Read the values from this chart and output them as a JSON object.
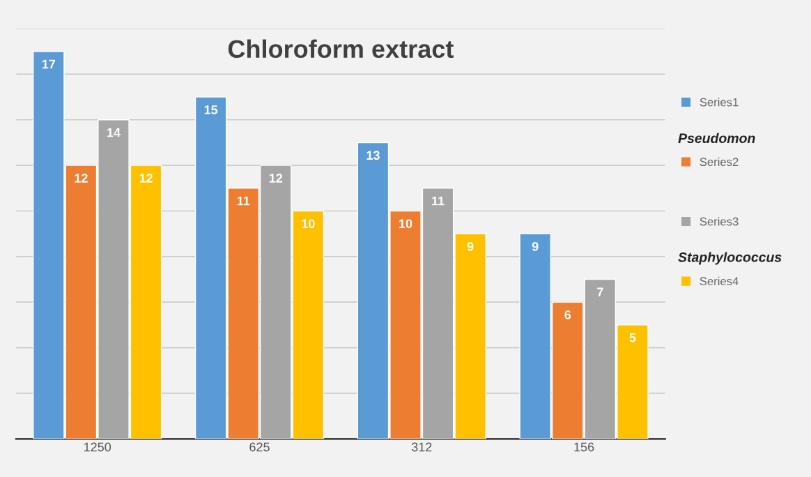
{
  "chart_data": {
    "type": "bar",
    "title": "Chloroform extract",
    "categories": [
      "1250",
      "625",
      "312",
      "156"
    ],
    "series": [
      {
        "name": "Series1",
        "color": "#5b9bd5",
        "values": [
          17,
          15,
          13,
          9
        ]
      },
      {
        "name": "Series2",
        "color": "#ed7d31",
        "values": [
          12,
          11,
          10,
          6
        ]
      },
      {
        "name": "Series3",
        "color": "#a5a5a5",
        "values": [
          14,
          12,
          11,
          7
        ]
      },
      {
        "name": "Series4",
        "color": "#ffc000",
        "values": [
          12,
          10,
          9,
          5
        ]
      }
    ],
    "ylim": [
      0,
      18
    ],
    "yticks": [
      {
        "value": 0,
        "label": null
      },
      {
        "value": 2,
        "label": null
      },
      {
        "value": 4,
        "label": null
      },
      {
        "value": 6,
        "label": null
      },
      {
        "value": 8,
        "label": null
      },
      {
        "value": 10,
        "label": null
      },
      {
        "value": 12,
        "label": null
      },
      {
        "value": 14,
        "label": null
      },
      {
        "value": 16,
        "label": null
      },
      {
        "value": 18,
        "label": null
      }
    ],
    "tick_labels": "x",
    "grid": "y",
    "legend": "right",
    "data_labels": true,
    "annotations": [
      "Pseudomon",
      "Staphylococcus"
    ]
  }
}
